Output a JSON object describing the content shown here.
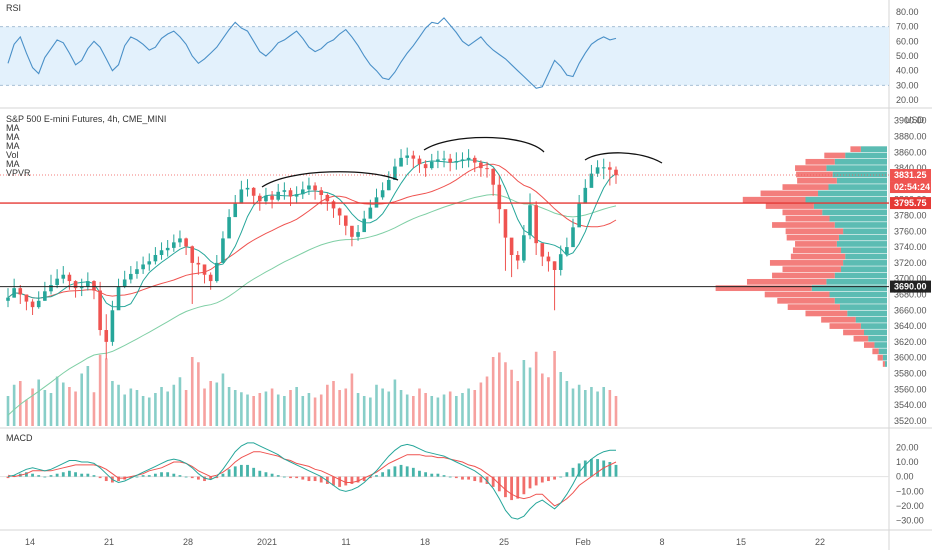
{
  "colors": {
    "up": "#26a69a",
    "down": "#ef5350",
    "rsi_line": "#4a90c8",
    "rsi_band": "#e3f1fc",
    "ma_fast": "#26a69a",
    "ma_slow": "#ef5350",
    "ma_long": "#7fcfa5",
    "macd_line": "#26a69a",
    "signal_line": "#ef5350",
    "level_red": "#e53935",
    "level_black": "#222222"
  },
  "rsi_panel": {
    "title": "RSI",
    "ticks": [
      "80.00",
      "70.00",
      "60.00",
      "50.00",
      "40.00",
      "30.00",
      "20.00"
    ]
  },
  "price_panel": {
    "legend": [
      "S&P 500 E-mini Futures, 4h, CME_MINI",
      "MA",
      "MA",
      "MA",
      "Vol",
      "MA",
      "VPVR"
    ],
    "currency": "USD",
    "ticks": [
      "3900.00",
      "3880.00",
      "3860.00",
      "3840.00",
      "3820.00",
      "3800.00",
      "3780.00",
      "3760.00",
      "3740.00",
      "3720.00",
      "3700.00",
      "3680.00",
      "3660.00",
      "3640.00",
      "3620.00",
      "3600.00",
      "3580.00",
      "3560.00",
      "3540.00",
      "3520.00"
    ],
    "tags": {
      "last_price": "3831.25",
      "countdown": "02:54:24",
      "red_level": "3795.75",
      "black_level": "3690.00"
    }
  },
  "macd_panel": {
    "title": "MACD",
    "ticks": [
      "20.00",
      "10.00",
      "0.00",
      "−10.00",
      "−20.00",
      "−30.00"
    ]
  },
  "x_axis": {
    "ticks": [
      "14",
      "21",
      "28",
      "2021",
      "11",
      "18",
      "25",
      "Feb",
      "8",
      "15",
      "22"
    ]
  },
  "chart_data": [
    {
      "type": "line",
      "name": "RSI",
      "x_count": 100,
      "values": [
        45,
        58,
        63,
        52,
        42,
        38,
        49,
        55,
        61,
        59,
        52,
        44,
        47,
        55,
        60,
        56,
        48,
        40,
        44,
        57,
        63,
        61,
        58,
        54,
        56,
        62,
        65,
        67,
        63,
        58,
        50,
        45,
        48,
        52,
        56,
        62,
        68,
        73,
        69,
        67,
        60,
        53,
        50,
        54,
        59,
        61,
        64,
        67,
        62,
        56,
        53,
        55,
        59,
        61,
        65,
        68,
        63,
        57,
        50,
        44,
        40,
        35,
        34,
        39,
        46,
        52,
        57,
        63,
        69,
        73,
        72,
        76,
        71,
        66,
        60,
        57,
        60,
        63,
        58,
        54,
        51,
        48,
        44,
        40,
        36,
        32,
        28,
        29,
        38,
        47,
        43,
        37,
        36,
        45,
        52,
        58,
        61,
        63,
        61,
        62
      ],
      "ylim": [
        20,
        80
      ],
      "bands": [
        30,
        70
      ]
    },
    {
      "type": "candlestick",
      "name": "S&P 500 E-mini Futures, 4h, CME_MINI",
      "x_count": 100,
      "close": [
        3676,
        3688,
        3680,
        3671,
        3664,
        3672,
        3684,
        3692,
        3700,
        3705,
        3697,
        3688,
        3690,
        3697,
        3685,
        3635,
        3620,
        3660,
        3690,
        3699,
        3706,
        3712,
        3718,
        3722,
        3730,
        3736,
        3739,
        3746,
        3751,
        3741,
        3720,
        3718,
        3705,
        3697,
        3720,
        3751,
        3778,
        3795,
        3813,
        3815,
        3805,
        3798,
        3805,
        3800,
        3810,
        3812,
        3804,
        3807,
        3813,
        3818,
        3812,
        3806,
        3798,
        3789,
        3780,
        3767,
        3753,
        3759,
        3776,
        3790,
        3803,
        3812,
        3825,
        3842,
        3853,
        3856,
        3852,
        3845,
        3840,
        3848,
        3851,
        3852,
        3847,
        3849,
        3851,
        3853,
        3847,
        3840,
        3839,
        3819,
        3788,
        3752,
        3730,
        3723,
        3755,
        3793,
        3745,
        3728,
        3722,
        3711,
        3731,
        3740,
        3765,
        3795,
        3815,
        3833,
        3841,
        3841,
        3838,
        3831
      ],
      "high": [
        3688,
        3700,
        3692,
        3680,
        3674,
        3684,
        3696,
        3705,
        3712,
        3716,
        3708,
        3698,
        3700,
        3708,
        3698,
        3696,
        3655,
        3672,
        3700,
        3710,
        3716,
        3722,
        3728,
        3732,
        3740,
        3746,
        3749,
        3756,
        3761,
        3752,
        3742,
        3728,
        3718,
        3708,
        3730,
        3760,
        3788,
        3806,
        3824,
        3826,
        3816,
        3808,
        3815,
        3811,
        3820,
        3822,
        3815,
        3817,
        3823,
        3828,
        3822,
        3816,
        3808,
        3800,
        3790,
        3778,
        3764,
        3768,
        3786,
        3800,
        3814,
        3822,
        3836,
        3852,
        3864,
        3866,
        3862,
        3856,
        3850,
        3858,
        3862,
        3862,
        3858,
        3860,
        3860,
        3864,
        3856,
        3850,
        3848,
        3840,
        3830,
        3770,
        3742,
        3735,
        3768,
        3808,
        3798,
        3740,
        3734,
        3722,
        3742,
        3752,
        3776,
        3806,
        3826,
        3844,
        3850,
        3852,
        3848,
        3842
      ],
      "low": [
        3664,
        3676,
        3668,
        3660,
        3654,
        3662,
        3672,
        3680,
        3688,
        3694,
        3686,
        3676,
        3678,
        3685,
        3674,
        3628,
        3598,
        3615,
        3680,
        3688,
        3694,
        3700,
        3706,
        3710,
        3718,
        3724,
        3728,
        3734,
        3740,
        3730,
        3668,
        3705,
        3694,
        3686,
        3695,
        3720,
        3765,
        3784,
        3802,
        3804,
        3794,
        3786,
        3794,
        3789,
        3798,
        3800,
        3792,
        3795,
        3801,
        3806,
        3800,
        3794,
        3786,
        3777,
        3768,
        3755,
        3741,
        3748,
        3765,
        3779,
        3792,
        3800,
        3812,
        3831,
        3842,
        3844,
        3840,
        3834,
        3829,
        3838,
        3840,
        3841,
        3836,
        3838,
        3840,
        3841,
        3835,
        3829,
        3828,
        3805,
        3770,
        3710,
        3702,
        3712,
        3720,
        3750,
        3730,
        3716,
        3709,
        3660,
        3704,
        3728,
        3752,
        3782,
        3802,
        3820,
        3829,
        3826,
        3818,
        3820
      ]
    },
    {
      "type": "bar",
      "name": "Vol",
      "x_count": 100,
      "values": [
        40,
        55,
        60,
        35,
        50,
        62,
        48,
        44,
        66,
        58,
        52,
        46,
        70,
        80,
        45,
        95,
        90,
        60,
        55,
        42,
        50,
        48,
        40,
        38,
        44,
        52,
        46,
        55,
        65,
        48,
        92,
        85,
        50,
        60,
        58,
        70,
        52,
        48,
        45,
        42,
        40,
        44,
        46,
        50,
        42,
        40,
        48,
        52,
        40,
        44,
        38,
        42,
        55,
        60,
        48,
        50,
        70,
        44,
        40,
        38,
        55,
        50,
        46,
        62,
        48,
        42,
        40,
        50,
        44,
        40,
        38,
        42,
        46,
        40,
        44,
        50,
        48,
        58,
        66,
        92,
        98,
        85,
        75,
        60,
        88,
        78,
        99,
        70,
        65,
        100,
        72,
        60,
        50,
        55,
        48,
        52,
        46,
        52,
        48,
        40
      ]
    },
    {
      "type": "bar",
      "name": "VPVR",
      "y_range": [
        3580,
        3866
      ],
      "levels": [
        3592,
        3600,
        3608,
        3616,
        3624,
        3632,
        3640,
        3648,
        3656,
        3664,
        3672,
        3680,
        3688,
        3696,
        3704,
        3712,
        3720,
        3728,
        3736,
        3744,
        3752,
        3760,
        3768,
        3776,
        3784,
        3792,
        3800,
        3808,
        3816,
        3824,
        3832,
        3840,
        3848,
        3856,
        3864
      ],
      "up_values": [
        0.02,
        0.04,
        0.08,
        0.12,
        0.18,
        0.22,
        0.25,
        0.3,
        0.38,
        0.45,
        0.5,
        0.55,
        0.72,
        0.58,
        0.5,
        0.44,
        0.42,
        0.4,
        0.44,
        0.48,
        0.46,
        0.42,
        0.5,
        0.55,
        0.62,
        0.7,
        0.78,
        0.66,
        0.56,
        0.48,
        0.52,
        0.58,
        0.5,
        0.4,
        0.25
      ],
      "down_values": [
        0.02,
        0.05,
        0.06,
        0.1,
        0.14,
        0.2,
        0.3,
        0.33,
        0.4,
        0.5,
        0.55,
        0.62,
        0.92,
        0.76,
        0.6,
        0.56,
        0.7,
        0.52,
        0.46,
        0.4,
        0.5,
        0.55,
        0.6,
        0.42,
        0.38,
        0.46,
        0.6,
        0.55,
        0.44,
        0.38,
        0.35,
        0.3,
        0.28,
        0.2,
        0.1
      ]
    },
    {
      "type": "bar",
      "name": "MACD",
      "x_count": 100,
      "histogram": [
        -1,
        1,
        2,
        3,
        2,
        1,
        0,
        1,
        2,
        3,
        4,
        3,
        2,
        2,
        1,
        -1,
        -3,
        -4,
        -3,
        -2,
        -1,
        0,
        1,
        1,
        2,
        3,
        3,
        2,
        1,
        0,
        -1,
        -2,
        -3,
        -2,
        -1,
        2,
        5,
        7,
        8,
        8,
        6,
        4,
        3,
        2,
        1,
        0,
        -1,
        -1,
        -2,
        -3,
        -3,
        -4,
        -5,
        -6,
        -7,
        -6,
        -5,
        -4,
        -3,
        -1,
        1,
        3,
        5,
        7,
        8,
        7,
        6,
        4,
        3,
        2,
        2,
        1,
        0,
        -1,
        -2,
        -2,
        -3,
        -4,
        -5,
        -7,
        -10,
        -14,
        -16,
        -15,
        -12,
        -8,
        -6,
        -4,
        -3,
        -2,
        0,
        3,
        6,
        9,
        11,
        12,
        12,
        11,
        10,
        8
      ],
      "macd": [
        0,
        1,
        3,
        5,
        6,
        5,
        4,
        5,
        7,
        9,
        11,
        11,
        10,
        10,
        9,
        6,
        2,
        -2,
        -4,
        -3,
        -1,
        1,
        3,
        5,
        7,
        9,
        11,
        12,
        11,
        9,
        6,
        2,
        -1,
        -2,
        0,
        5,
        11,
        17,
        21,
        23,
        23,
        21,
        19,
        17,
        15,
        12,
        10,
        8,
        6,
        4,
        2,
        0,
        -3,
        -6,
        -9,
        -10,
        -9,
        -7,
        -4,
        0,
        4,
        9,
        14,
        18,
        21,
        22,
        21,
        19,
        17,
        16,
        15,
        14,
        12,
        10,
        8,
        6,
        4,
        1,
        -3,
        -8,
        -15,
        -23,
        -28,
        -29,
        -27,
        -22,
        -18,
        -16,
        -19,
        -22,
        -18,
        -12,
        -5,
        3,
        8,
        12,
        15,
        17,
        18,
        18
      ],
      "signal": [
        1,
        0,
        1,
        2,
        4,
        4,
        4,
        4,
        5,
        6,
        7,
        8,
        8,
        8,
        8,
        7,
        5,
        2,
        -1,
        -1,
        0,
        1,
        2,
        4,
        5,
        6,
        8,
        10,
        10,
        9,
        7,
        4,
        2,
        0,
        1,
        3,
        6,
        10,
        13,
        15,
        17,
        17,
        16,
        15,
        14,
        12,
        11,
        9,
        8,
        7,
        5,
        4,
        2,
        0,
        -2,
        -4,
        -4,
        -3,
        -1,
        1,
        3,
        6,
        9,
        11,
        13,
        15,
        15,
        15,
        14,
        14,
        13,
        13,
        12,
        11,
        10,
        8,
        7,
        5,
        2,
        -1,
        -5,
        -9,
        -12,
        -14,
        -15,
        -14,
        -12,
        -12,
        -16,
        -20,
        -18,
        -15,
        -11,
        -6,
        -3,
        0,
        3,
        6,
        8,
        10
      ],
      "ylim": [
        -33,
        25
      ]
    }
  ]
}
